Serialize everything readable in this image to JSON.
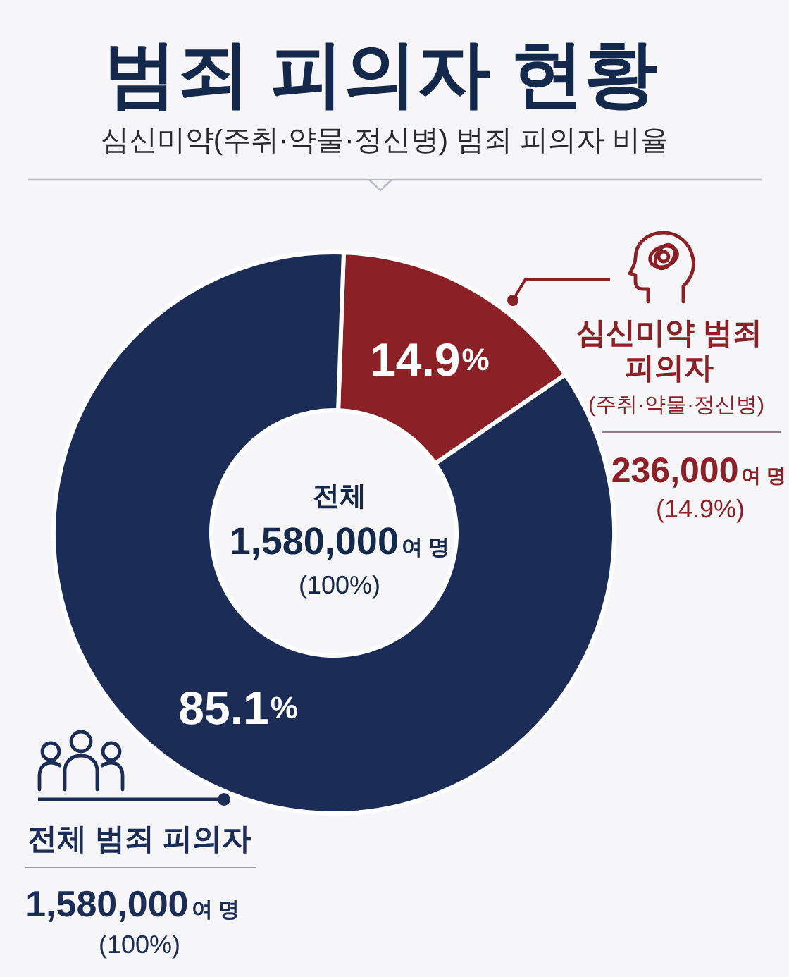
{
  "chart_data": {
    "type": "donut",
    "title": "범죄 피의자 현황",
    "subtitle": "심신미약(주취·약물·정신병) 범죄 피의자 비율",
    "categories": [
      "심신미약 범죄 피의자",
      "전체 범죄 피의자"
    ],
    "values": [
      14.9,
      85.1
    ],
    "colors": [
      "#8b2126",
      "#1b2d56"
    ],
    "value_labels": [
      "14.9%",
      "85.1%"
    ],
    "legend": "right",
    "annotations": [
      "전체",
      "1,580,000여 명",
      "(100%)",
      "(주취·약물·정신병)",
      "236,000여 명",
      "(14.9%)",
      "1,580,000여 명",
      "(100%)"
    ]
  }
}
